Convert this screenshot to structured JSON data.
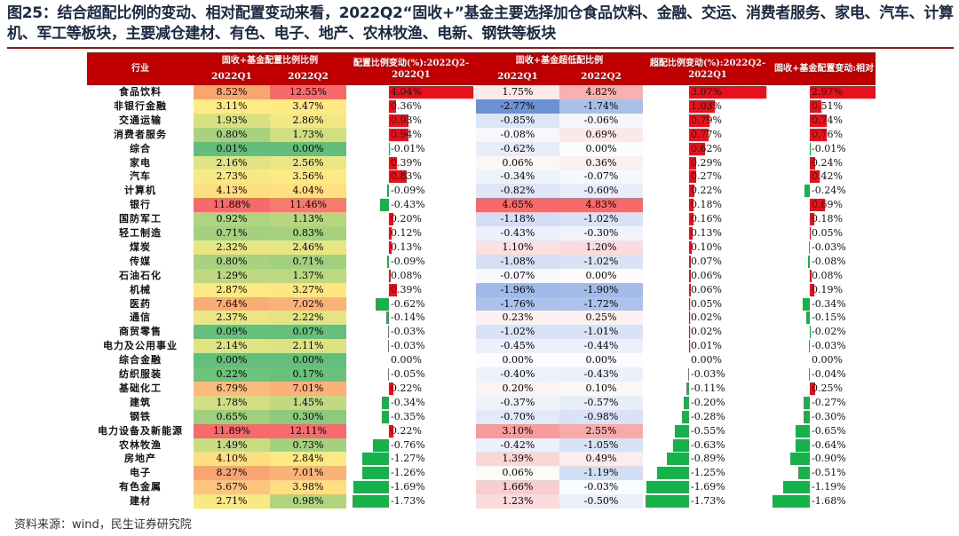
{
  "title": "图25：结合超配比例的变动、相对配置变动来看，2022Q2“固收+”基金主要选择加仓食品饮料、金融、交运、消费者服务、家电、汽车、计算机、军工等板块，主要减仓建材、有色、电子、地产、农林牧渔、电新、钢铁等板块",
  "source": "资料来源：wind，民生证券研究院",
  "headers": {
    "industry": "行业",
    "share": "固收+基金配置比例比例",
    "change": "配置比例变动(%):2022Q2-2022Q1",
    "over": "固收+基金超低配比例",
    "over_change": "超配比例变动(%):2022Q2-2022Q1",
    "rel_change": "固收+基金配置变动:相对",
    "q1": "2022Q1",
    "q2": "2022Q2"
  },
  "colors": {
    "pos_bar": "#e8101a",
    "neg_bar": "#15b24a",
    "header": "#c00000"
  },
  "chart_data": {
    "type": "table",
    "columns": [
      "行业",
      "配置比例2022Q1",
      "配置比例2022Q2",
      "配置比例变动",
      "超低配2022Q1",
      "超低配2022Q2",
      "超配比例变动",
      "相对配置变动"
    ],
    "rows": [
      {
        "industry": "食品饮料",
        "share_q1": "8.52%",
        "share_q2": "12.55%",
        "change": 4.04,
        "change_label": "4.04%",
        "over_q1": "1.75%",
        "over_q2": "4.82%",
        "over_change": 3.07,
        "over_change_label": "3.07%",
        "rel": 2.97,
        "rel_label": "2.97%",
        "c1": "#f8a56f",
        "c2": "#f8696b",
        "c3": "#fde9e9",
        "c4": "#f8b0b0"
      },
      {
        "industry": "非银行金融",
        "share_q1": "3.11%",
        "share_q2": "3.47%",
        "change": 0.36,
        "change_label": "0.36%",
        "over_q1": "-2.77%",
        "over_q2": "-1.74%",
        "over_change": 1.03,
        "over_change_label": "1.03%",
        "rel": 0.51,
        "rel_label": "0.51%",
        "c1": "#ffeb84",
        "c2": "#ffe984",
        "c3": "#6c92d6",
        "c4": "#a8c0ea"
      },
      {
        "industry": "交通运输",
        "share_q1": "1.93%",
        "share_q2": "2.86%",
        "change": 0.93,
        "change_label": "0.93%",
        "over_q1": "-0.85%",
        "over_q2": "-0.06%",
        "over_change": 0.79,
        "over_change_label": "0.79%",
        "rel": 0.74,
        "rel_label": "0.74%",
        "c1": "#d8e081",
        "c2": "#f2e883",
        "c3": "#dde6f7",
        "c4": "#f5f7fc"
      },
      {
        "industry": "消费者服务",
        "share_q1": "0.80%",
        "share_q2": "1.73%",
        "change": 0.94,
        "change_label": "0.94%",
        "over_q1": "-0.08%",
        "over_q2": "0.69%",
        "over_change": 0.77,
        "over_change_label": "0.77%",
        "rel": 0.76,
        "rel_label": "0.76%",
        "c1": "#a8d27f",
        "c2": "#d1df81",
        "c3": "#f7f8fd",
        "c4": "#fbe8e8"
      },
      {
        "industry": "综合",
        "share_q1": "0.01%",
        "share_q2": "0.00%",
        "change": -0.01,
        "change_label": "-0.01%",
        "over_q1": "-0.62%",
        "over_q2": "0.00%",
        "over_change": 0.62,
        "over_change_label": "0.62%",
        "rel": -0.01,
        "rel_label": "-0.01%",
        "c1": "#63be7b",
        "c2": "#63be7b",
        "c3": "#e7ecf8",
        "c4": "#fcfcff"
      },
      {
        "industry": "家电",
        "share_q1": "2.16%",
        "share_q2": "2.56%",
        "change": 0.39,
        "change_label": "0.39%",
        "over_q1": "0.06%",
        "over_q2": "0.36%",
        "over_change": 0.29,
        "over_change_label": "0.29%",
        "rel": 0.24,
        "rel_label": "0.24%",
        "c1": "#e1e382",
        "c2": "#ebe683",
        "c3": "#fdf6f6",
        "c4": "#fcefef"
      },
      {
        "industry": "汽车",
        "share_q1": "2.73%",
        "share_q2": "3.56%",
        "change": 0.83,
        "change_label": "0.83%",
        "over_q1": "-0.34%",
        "over_q2": "-0.07%",
        "over_change": 0.27,
        "over_change_label": "0.27%",
        "rel": 0.42,
        "rel_label": "0.42%",
        "c1": "#f8e984",
        "c2": "#ffe984",
        "c3": "#eef2fb",
        "c4": "#f6f8fd"
      },
      {
        "industry": "计算机",
        "share_q1": "4.13%",
        "share_q2": "4.04%",
        "change": -0.09,
        "change_label": "-0.09%",
        "over_q1": "-0.82%",
        "over_q2": "-0.60%",
        "over_change": 0.22,
        "over_change_label": "0.22%",
        "rel": -0.24,
        "rel_label": "-0.24%",
        "c1": "#ffdd81",
        "c2": "#ffdf81",
        "c3": "#dee7f7",
        "c4": "#e8edf9"
      },
      {
        "industry": "银行",
        "share_q1": "11.88%",
        "share_q2": "11.46%",
        "change": -0.43,
        "change_label": "-0.43%",
        "over_q1": "4.65%",
        "over_q2": "4.83%",
        "over_change": 0.18,
        "over_change_label": "0.18%",
        "rel": 0.69,
        "rel_label": "0.69%",
        "c1": "#f8696b",
        "c2": "#f87a6e",
        "c3": "#f8696b",
        "c4": "#f8696b"
      },
      {
        "industry": "国防军工",
        "share_q1": "0.92%",
        "share_q2": "1.13%",
        "change": 0.2,
        "change_label": "0.20%",
        "over_q1": "-1.18%",
        "over_q2": "-1.02%",
        "over_change": 0.16,
        "over_change_label": "0.16%",
        "rel": 0.18,
        "rel_label": "0.18%",
        "c1": "#aed47f",
        "c2": "#b6d680",
        "c3": "#d3def4",
        "c4": "#d9e3f6"
      },
      {
        "industry": "轻工制造",
        "share_q1": "0.71%",
        "share_q2": "0.83%",
        "change": 0.12,
        "change_label": "0.12%",
        "over_q1": "-0.43%",
        "over_q2": "-0.30%",
        "over_change": 0.13,
        "over_change_label": "0.13%",
        "rel": 0.05,
        "rel_label": "0.05%",
        "c1": "#a4d17f",
        "c2": "#a6d27f",
        "c3": "#ebf0fa",
        "c4": "#f0f3fb"
      },
      {
        "industry": "煤炭",
        "share_q1": "2.32%",
        "share_q2": "2.46%",
        "change": 0.13,
        "change_label": "0.13%",
        "over_q1": "1.10%",
        "over_q2": "1.20%",
        "over_change": 0.1,
        "over_change_label": "0.10%",
        "rel": -0.03,
        "rel_label": "-0.03%",
        "c1": "#e9e583",
        "c2": "#e8e583",
        "c3": "#fbe0e0",
        "c4": "#fbdcdc"
      },
      {
        "industry": "传媒",
        "share_q1": "0.80%",
        "share_q2": "0.71%",
        "change": -0.09,
        "change_label": "-0.09%",
        "over_q1": "-1.08%",
        "over_q2": "-1.02%",
        "over_change": 0.07,
        "over_change_label": "0.07%",
        "rel": -0.08,
        "rel_label": "-0.08%",
        "c1": "#a8d27f",
        "c2": "#a1d07e",
        "c3": "#d6e0f5",
        "c4": "#d9e3f6"
      },
      {
        "industry": "石油石化",
        "share_q1": "1.29%",
        "share_q2": "1.37%",
        "change": 0.08,
        "change_label": "0.08%",
        "over_q1": "-0.07%",
        "over_q2": "0.00%",
        "over_change": 0.06,
        "over_change_label": "0.06%",
        "rel": 0.08,
        "rel_label": "0.08%",
        "c1": "#bdd880",
        "c2": "#bed880",
        "c3": "#f7f8fd",
        "c4": "#fcfcff"
      },
      {
        "industry": "机械",
        "share_q1": "2.87%",
        "share_q2": "3.27%",
        "change": 0.39,
        "change_label": "0.39%",
        "over_q1": "-1.96%",
        "over_q2": "-1.90%",
        "over_change": 0.06,
        "over_change_label": "0.06%",
        "rel": 0.19,
        "rel_label": "0.19%",
        "c1": "#fde984",
        "c2": "#ffe683",
        "c3": "#9fb9e8",
        "c4": "#a2bbe9"
      },
      {
        "industry": "医药",
        "share_q1": "7.64%",
        "share_q2": "7.02%",
        "change": -0.62,
        "change_label": "-0.62%",
        "over_q1": "-1.76%",
        "over_q2": "-1.72%",
        "over_change": 0.05,
        "over_change_label": "0.05%",
        "rel": -0.34,
        "rel_label": "-0.34%",
        "c1": "#f9ac76",
        "c2": "#fbb279",
        "c3": "#abc2ea",
        "c4": "#adc3eb"
      },
      {
        "industry": "通信",
        "share_q1": "2.37%",
        "share_q2": "2.22%",
        "change": -0.14,
        "change_label": "-0.14%",
        "over_q1": "0.23%",
        "over_q2": "0.25%",
        "over_change": 0.02,
        "over_change_label": "0.02%",
        "rel": -0.15,
        "rel_label": "-0.15%",
        "c1": "#ebe683",
        "c2": "#e4e482",
        "c3": "#fdf2f2",
        "c4": "#fcf1f1"
      },
      {
        "industry": "商贸零售",
        "share_q1": "0.09%",
        "share_q2": "0.07%",
        "change": -0.03,
        "change_label": "-0.03%",
        "over_q1": "-1.02%",
        "over_q2": "-1.01%",
        "over_change": 0.02,
        "over_change_label": "0.02%",
        "rel": -0.02,
        "rel_label": "-0.02%",
        "c1": "#66bf7c",
        "c2": "#66bf7c",
        "c3": "#d9e3f6",
        "c4": "#dae3f6"
      },
      {
        "industry": "电力及公用事业",
        "share_q1": "2.14%",
        "share_q2": "2.11%",
        "change": -0.03,
        "change_label": "-0.03%",
        "over_q1": "-0.45%",
        "over_q2": "-0.44%",
        "over_change": 0.01,
        "over_change_label": "0.01%",
        "rel": -0.03,
        "rel_label": "-0.03%",
        "c1": "#e0e382",
        "c2": "#dfe282",
        "c3": "#ebf0fa",
        "c4": "#ebf0fa"
      },
      {
        "industry": "综合金融",
        "share_q1": "0.00%",
        "share_q2": "0.00%",
        "change": 0.0,
        "change_label": "0.00%",
        "over_q1": "0.00%",
        "over_q2": "0.00%",
        "over_change": 0.0,
        "over_change_label": "0.00%",
        "rel": 0.0,
        "rel_label": "0.00%",
        "c1": "#63be7b",
        "c2": "#63be7b",
        "c3": "#fcfcff",
        "c4": "#fcfcff"
      },
      {
        "industry": "纺织服装",
        "share_q1": "0.22%",
        "share_q2": "0.17%",
        "change": -0.05,
        "change_label": "-0.05%",
        "over_q1": "-0.40%",
        "over_q2": "-0.43%",
        "over_change": -0.03,
        "over_change_label": "-0.03%",
        "rel": -0.04,
        "rel_label": "-0.04%",
        "c1": "#6dc27c",
        "c2": "#6ac17c",
        "c3": "#edf1fa",
        "c4": "#ebf0fa"
      },
      {
        "industry": "基础化工",
        "share_q1": "6.79%",
        "share_q2": "7.01%",
        "change": 0.22,
        "change_label": "0.22%",
        "over_q1": "0.20%",
        "over_q2": "0.10%",
        "over_change": -0.11,
        "over_change_label": "-0.11%",
        "rel": 0.25,
        "rel_label": "0.25%",
        "c1": "#fbbb7b",
        "c2": "#fbb279",
        "c3": "#fdf3f3",
        "c4": "#fdf8f8"
      },
      {
        "industry": "建筑",
        "share_q1": "1.78%",
        "share_q2": "1.45%",
        "change": -0.34,
        "change_label": "-0.34%",
        "over_q1": "-0.37%",
        "over_q2": "-0.57%",
        "over_change": -0.2,
        "over_change_label": "-0.20%",
        "rel": -0.27,
        "rel_label": "-0.27%",
        "c1": "#d2de81",
        "c2": "#c1d980",
        "c3": "#eef2fb",
        "c4": "#e8edf9"
      },
      {
        "industry": "钢铁",
        "share_q1": "0.65%",
        "share_q2": "0.30%",
        "change": -0.35,
        "change_label": "-0.35%",
        "over_q1": "-0.70%",
        "over_q2": "-0.98%",
        "over_change": -0.28,
        "over_change_label": "-0.28%",
        "rel": -0.3,
        "rel_label": "-0.30%",
        "c1": "#a0cf7e",
        "c2": "#8ec97d",
        "c3": "#e3e9f8",
        "c4": "#dae3f6"
      },
      {
        "industry": "电力设备及新能源",
        "share_q1": "11.89%",
        "share_q2": "12.11%",
        "change": 0.22,
        "change_label": "0.22%",
        "over_q1": "3.10%",
        "over_q2": "2.55%",
        "over_change": -0.55,
        "over_change_label": "-0.55%",
        "rel": -0.65,
        "rel_label": "-0.65%",
        "c1": "#f8696b",
        "c2": "#f86a6b",
        "c3": "#f99a9b",
        "c4": "#faa9a9"
      },
      {
        "industry": "农林牧渔",
        "share_q1": "1.49%",
        "share_q2": "0.73%",
        "change": -0.76,
        "change_label": "-0.76%",
        "over_q1": "-0.42%",
        "over_q2": "-1.05%",
        "over_change": -0.63,
        "over_change_label": "-0.63%",
        "rel": -0.64,
        "rel_label": "-0.64%",
        "c1": "#c7db81",
        "c2": "#a5d17f",
        "c3": "#ecf0fa",
        "c4": "#d8e2f5"
      },
      {
        "industry": "房地产",
        "share_q1": "4.10%",
        "share_q2": "2.84%",
        "change": -1.27,
        "change_label": "-1.27%",
        "over_q1": "1.39%",
        "over_q2": "0.49%",
        "over_change": -0.89,
        "over_change_label": "-0.89%",
        "rel": -0.9,
        "rel_label": "-0.90%",
        "c1": "#ffde81",
        "c2": "#fde984",
        "c3": "#fad6d6",
        "c4": "#fcecec"
      },
      {
        "industry": "电子",
        "share_q1": "8.27%",
        "share_q2": "7.01%",
        "change": -1.26,
        "change_label": "-1.26%",
        "over_q1": "0.06%",
        "over_q2": "-1.19%",
        "over_change": -1.25,
        "over_change_label": "-1.25%",
        "rel": -0.51,
        "rel_label": "-0.51%",
        "c1": "#f9a474",
        "c2": "#fbb279",
        "c3": "#fdfafa",
        "c4": "#d2def4"
      },
      {
        "industry": "有色金属",
        "share_q1": "5.67%",
        "share_q2": "3.98%",
        "change": -1.69,
        "change_label": "-1.69%",
        "over_q1": "1.66%",
        "over_q2": "-0.03%",
        "over_change": -1.69,
        "over_change_label": "-1.69%",
        "rel": -1.19,
        "rel_label": "-1.19%",
        "c1": "#fcc67d",
        "c2": "#ffde81",
        "c3": "#f9cdcd",
        "c4": "#fafbff"
      },
      {
        "industry": "建材",
        "share_q1": "2.71%",
        "share_q2": "0.98%",
        "change": -1.73,
        "change_label": "-1.73%",
        "over_q1": "1.23%",
        "over_q2": "-0.50%",
        "over_change": -1.73,
        "over_change_label": "-1.73%",
        "rel": -1.68,
        "rel_label": "-1.68%",
        "c1": "#f7e984",
        "c2": "#b1d57f",
        "c3": "#fadbdb",
        "c4": "#eaeff9"
      }
    ]
  }
}
